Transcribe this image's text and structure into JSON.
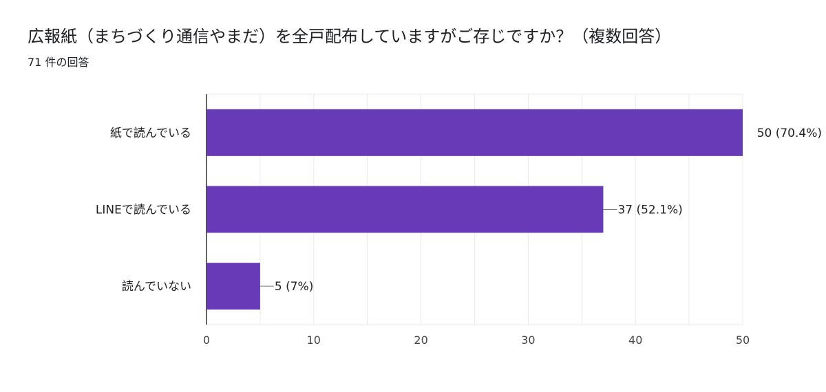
{
  "header": {
    "title": "広報紙（まちづくり通信やまだ）を全戸配布していますがご存じですか？（複数回答）",
    "response_count": "71 件の回答"
  },
  "colors": {
    "bar": "#673ab7",
    "grid": "#e8e8e8",
    "axis": "#333333",
    "connector": "#777777"
  },
  "chart_data": {
    "type": "bar",
    "orientation": "horizontal",
    "categories": [
      "紙で読んでいる",
      "LINEで読んでいる",
      "読んでいない"
    ],
    "values": [
      50,
      37,
      5
    ],
    "value_labels": [
      "50 (70.4%)",
      "37 (52.1%)",
      "5 (7%)"
    ],
    "xlim": [
      0,
      50
    ],
    "xticks": [
      0,
      10,
      20,
      30,
      40,
      50
    ],
    "grid": true,
    "legend": "none"
  }
}
